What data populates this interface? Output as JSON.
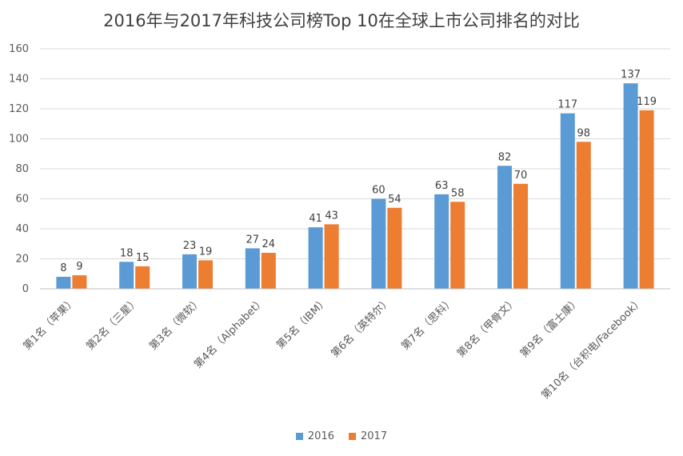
{
  "chart_data": {
    "type": "bar",
    "title": "2016年与2017年科技公司榜Top 10在全球上市公司排名的对比",
    "categories": [
      "第1名（苹果）",
      "第2名（三星）",
      "第3名（微软）",
      "第4名（Alphabet）",
      "第5名（IBM）",
      "第6名（英特尔）",
      "第7名（思科）",
      "第8名（甲骨文）",
      "第9名（富士康）",
      "第10名（台积电/Facebook）"
    ],
    "series": [
      {
        "name": "2016",
        "color": "#5B9BD5",
        "values": [
          8,
          18,
          23,
          27,
          41,
          60,
          63,
          82,
          117,
          137
        ]
      },
      {
        "name": "2017",
        "color": "#ED7D31",
        "values": [
          9,
          15,
          19,
          24,
          43,
          54,
          58,
          70,
          98,
          119
        ]
      }
    ],
    "ylim": [
      0,
      160
    ],
    "yticks": [
      0,
      20,
      40,
      60,
      80,
      100,
      120,
      140,
      160
    ],
    "grid": true,
    "legend": "bottom"
  }
}
